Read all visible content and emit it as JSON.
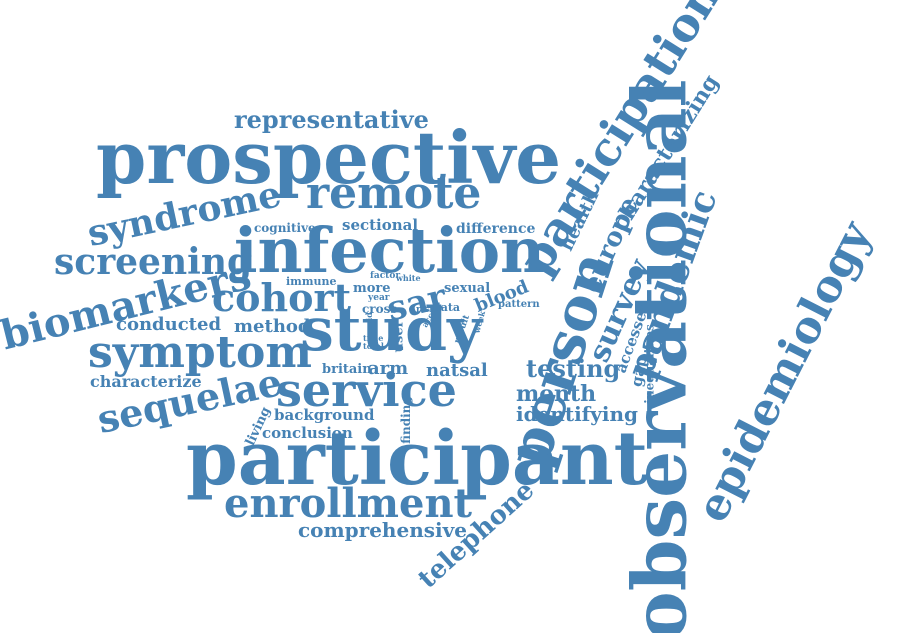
{
  "colors": {
    "word": "#4682b4",
    "background": "#ffffff"
  },
  "words": {
    "representative": "representative",
    "prospective": "prospective",
    "remote": "remote",
    "participation": "participation",
    "syndrome": "syndrome",
    "screening": "screening",
    "infection": "infection",
    "cognitive": "cognitive",
    "sectional": "sectional",
    "difference": "difference",
    "characterizing": "characterizing",
    "health": "health",
    "europe": "europe",
    "pandemic": "pandemic",
    "biomarkers": "biomarkers",
    "cohort": "cohort",
    "immune": "immune",
    "factor": "factor",
    "white": "white",
    "more": "more",
    "sar": "sar",
    "sexual": "sexual",
    "year": "year",
    "cross": "cross",
    "risk": "risk",
    "data": "data",
    "blood": "blood",
    "pattern": "pattern",
    "conducted": "conducted",
    "method": "method",
    "study": "study",
    "user": "user",
    "covid": "covid",
    "time": "time",
    "total": "total",
    "acc": "acc",
    "week": "week",
    "result": "result",
    "symptom": "symptom",
    "britain": "britain",
    "arm": "arm",
    "natsal": "natsal",
    "service": "service",
    "person": "person",
    "survey": "survey",
    "testing": "testing",
    "accessed": "accessed",
    "gap": "gap",
    "inequalities": "inequalities",
    "characterize": "characterize",
    "month": "month",
    "sequelae": "sequelae",
    "living": "living",
    "background": "background",
    "finding": "finding",
    "identifying": "identifying",
    "conclusion": "conclusion",
    "participant": "participant",
    "observational": "observational",
    "epidemiology": "epidemiology",
    "enrollment": "enrollment",
    "comprehensive": "comprehensive",
    "telephone": "telephone"
  }
}
